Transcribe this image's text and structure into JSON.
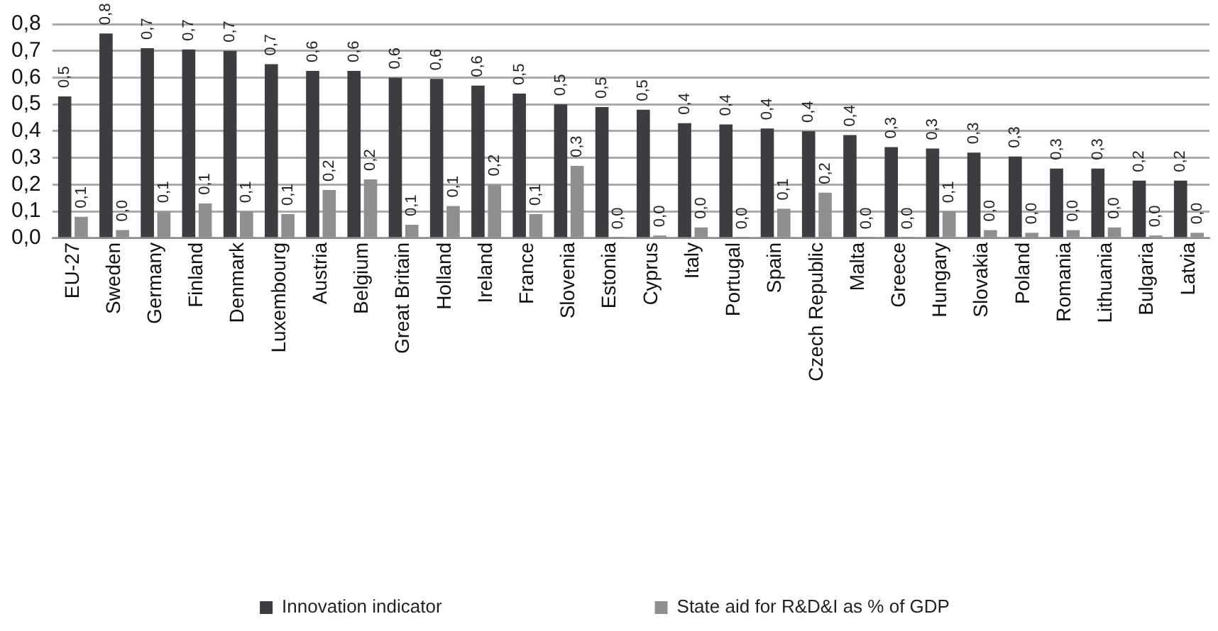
{
  "chart_data": {
    "type": "bar",
    "categories": [
      "EU-27",
      "Sweden",
      "Germany",
      "Finland",
      "Denmark",
      "Luxembourg",
      "Austria",
      "Belgium",
      "Great Britain",
      "Holland",
      "Ireland",
      "France",
      "Slovenia",
      "Estonia",
      "Cyprus",
      "Italy",
      "Portugal",
      "Spain",
      "Czech Republic",
      "Malta",
      "Greece",
      "Hungary",
      "Slovakia",
      "Poland",
      "Romania",
      "Lithuania",
      "Bulgaria",
      "Latvia"
    ],
    "series": [
      {
        "name": "Innovation indicator",
        "color": "#3c3d40",
        "values": [
          0.53,
          0.765,
          0.71,
          0.705,
          0.7,
          0.65,
          0.625,
          0.625,
          0.6,
          0.595,
          0.57,
          0.54,
          0.5,
          0.49,
          0.48,
          0.43,
          0.425,
          0.41,
          0.4,
          0.385,
          0.34,
          0.335,
          0.32,
          0.305,
          0.26,
          0.26,
          0.215,
          0.215
        ],
        "value_labels": [
          "0,5",
          "0,8",
          "0,7",
          "0,7",
          "0,7",
          "0,7",
          "0,6",
          "0,6",
          "0,6",
          "0,6",
          "0,6",
          "0,5",
          "0,5",
          "0,5",
          "0,5",
          "0,4",
          "0,4",
          "0,4",
          "0,4",
          "0,4",
          "0,3",
          "0,3",
          "0,3",
          "0,3",
          "0,3",
          "0,3",
          "0,2",
          "0,2"
        ]
      },
      {
        "name": "State aid for R&D&I as % of GDP",
        "color": "#8e8f91",
        "values": [
          0.08,
          0.03,
          0.1,
          0.13,
          0.1,
          0.09,
          0.18,
          0.22,
          0.05,
          0.12,
          0.2,
          0.09,
          0.27,
          0.002,
          0.01,
          0.04,
          0.002,
          0.11,
          0.17,
          0.002,
          0.002,
          0.1,
          0.03,
          0.02,
          0.03,
          0.04,
          0.01,
          0.02
        ],
        "value_labels": [
          "0,1",
          "0,0",
          "0,1",
          "0,1",
          "0,1",
          "0,1",
          "0,2",
          "0,2",
          "0,1",
          "0,1",
          "0,2",
          "0,1",
          "0,3",
          "0,0",
          "0,0",
          "0,0",
          "0,0",
          "0,1",
          "0,2",
          "0,0",
          "0,0",
          "0,1",
          "0,0",
          "0,0",
          "0,0",
          "0,0",
          "0,0",
          "0,0"
        ]
      }
    ],
    "ylim": [
      0,
      0.8
    ],
    "yticks": [
      {
        "value": 0,
        "label": "0,0"
      },
      {
        "value": 0.1,
        "label": "0,1"
      },
      {
        "value": 0.2,
        "label": "0,2"
      },
      {
        "value": 0.3,
        "label": "0,3"
      },
      {
        "value": 0.4,
        "label": "0,4"
      },
      {
        "value": 0.5,
        "label": "0,5"
      },
      {
        "value": 0.6,
        "label": "0,6"
      },
      {
        "value": 0.7,
        "label": "0,7"
      },
      {
        "value": 0.8,
        "label": "0,8"
      }
    ],
    "grid": "y",
    "legend": "bottom"
  }
}
